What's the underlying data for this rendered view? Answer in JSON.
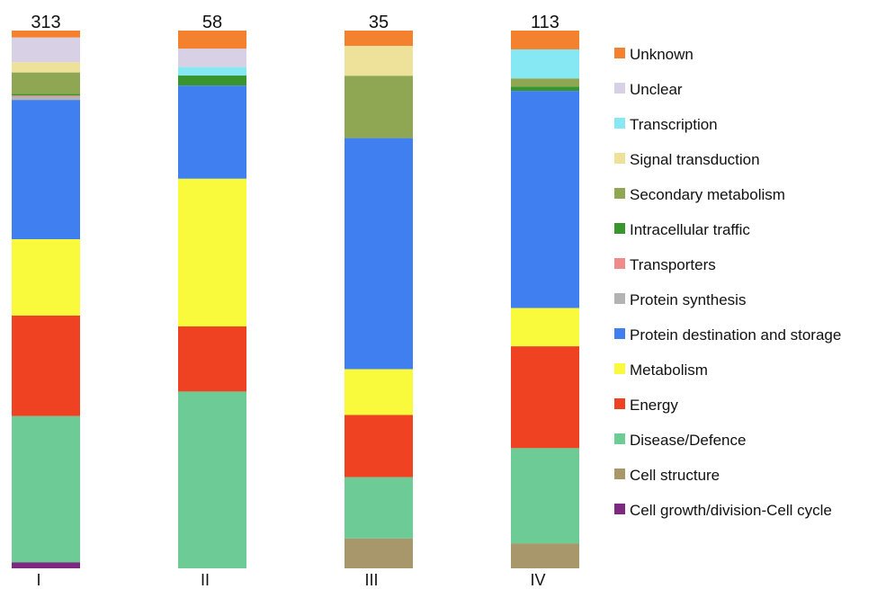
{
  "chart_data": {
    "type": "bar",
    "stacked": true,
    "normalized": true,
    "categories": [
      "I",
      "II",
      "III",
      "IV"
    ],
    "totals": [
      "313",
      "58",
      "35",
      "113"
    ],
    "legend_position": "right",
    "series": [
      {
        "name": "Unknown",
        "color": "#f4812e",
        "values": [
          1.3,
          3.4,
          2.9,
          3.5
        ]
      },
      {
        "name": "Unclear",
        "color": "#d8d1e6",
        "values": [
          4.6,
          3.5,
          0,
          0
        ]
      },
      {
        "name": "Transcription",
        "color": "#86e8f2",
        "values": [
          0,
          1.6,
          0,
          5.4
        ]
      },
      {
        "name": "Signal transduction",
        "color": "#eee19a",
        "values": [
          1.9,
          0,
          5.6,
          0
        ]
      },
      {
        "name": "Secondary metabolism",
        "color": "#8fa752",
        "values": [
          4.0,
          0,
          11.7,
          1.5
        ]
      },
      {
        "name": "Intracellular traffic",
        "color": "#39962f",
        "values": [
          0.3,
          1.9,
          0,
          0.8
        ]
      },
      {
        "name": "Transporters",
        "color": "#f08b8b",
        "values": [
          0.2,
          0,
          0,
          0
        ]
      },
      {
        "name": "Protein synthesis",
        "color": "#b3b3b3",
        "values": [
          0.6,
          0,
          0,
          0
        ]
      },
      {
        "name": "Protein destination and storage",
        "color": "#3f7ff0",
        "values": [
          25.9,
          17.6,
          43.4,
          40.3
        ]
      },
      {
        "name": "Metabolism",
        "color": "#fafa3c",
        "values": [
          14.2,
          27.9,
          8.6,
          7.1
        ]
      },
      {
        "name": "Energy",
        "color": "#ee4222",
        "values": [
          18.7,
          12.3,
          11.7,
          18.9
        ]
      },
      {
        "name": "Disease/Defence",
        "color": "#6dcc96",
        "values": [
          27.2,
          33.4,
          11.5,
          17.7
        ]
      },
      {
        "name": "Cell structure",
        "color": "#a8976a",
        "values": [
          0,
          0,
          5.6,
          4.6
        ]
      },
      {
        "name": "Cell growth/division-Cell cycle",
        "color": "#7c2a7f",
        "values": [
          1.1,
          0,
          0,
          0
        ]
      }
    ]
  }
}
